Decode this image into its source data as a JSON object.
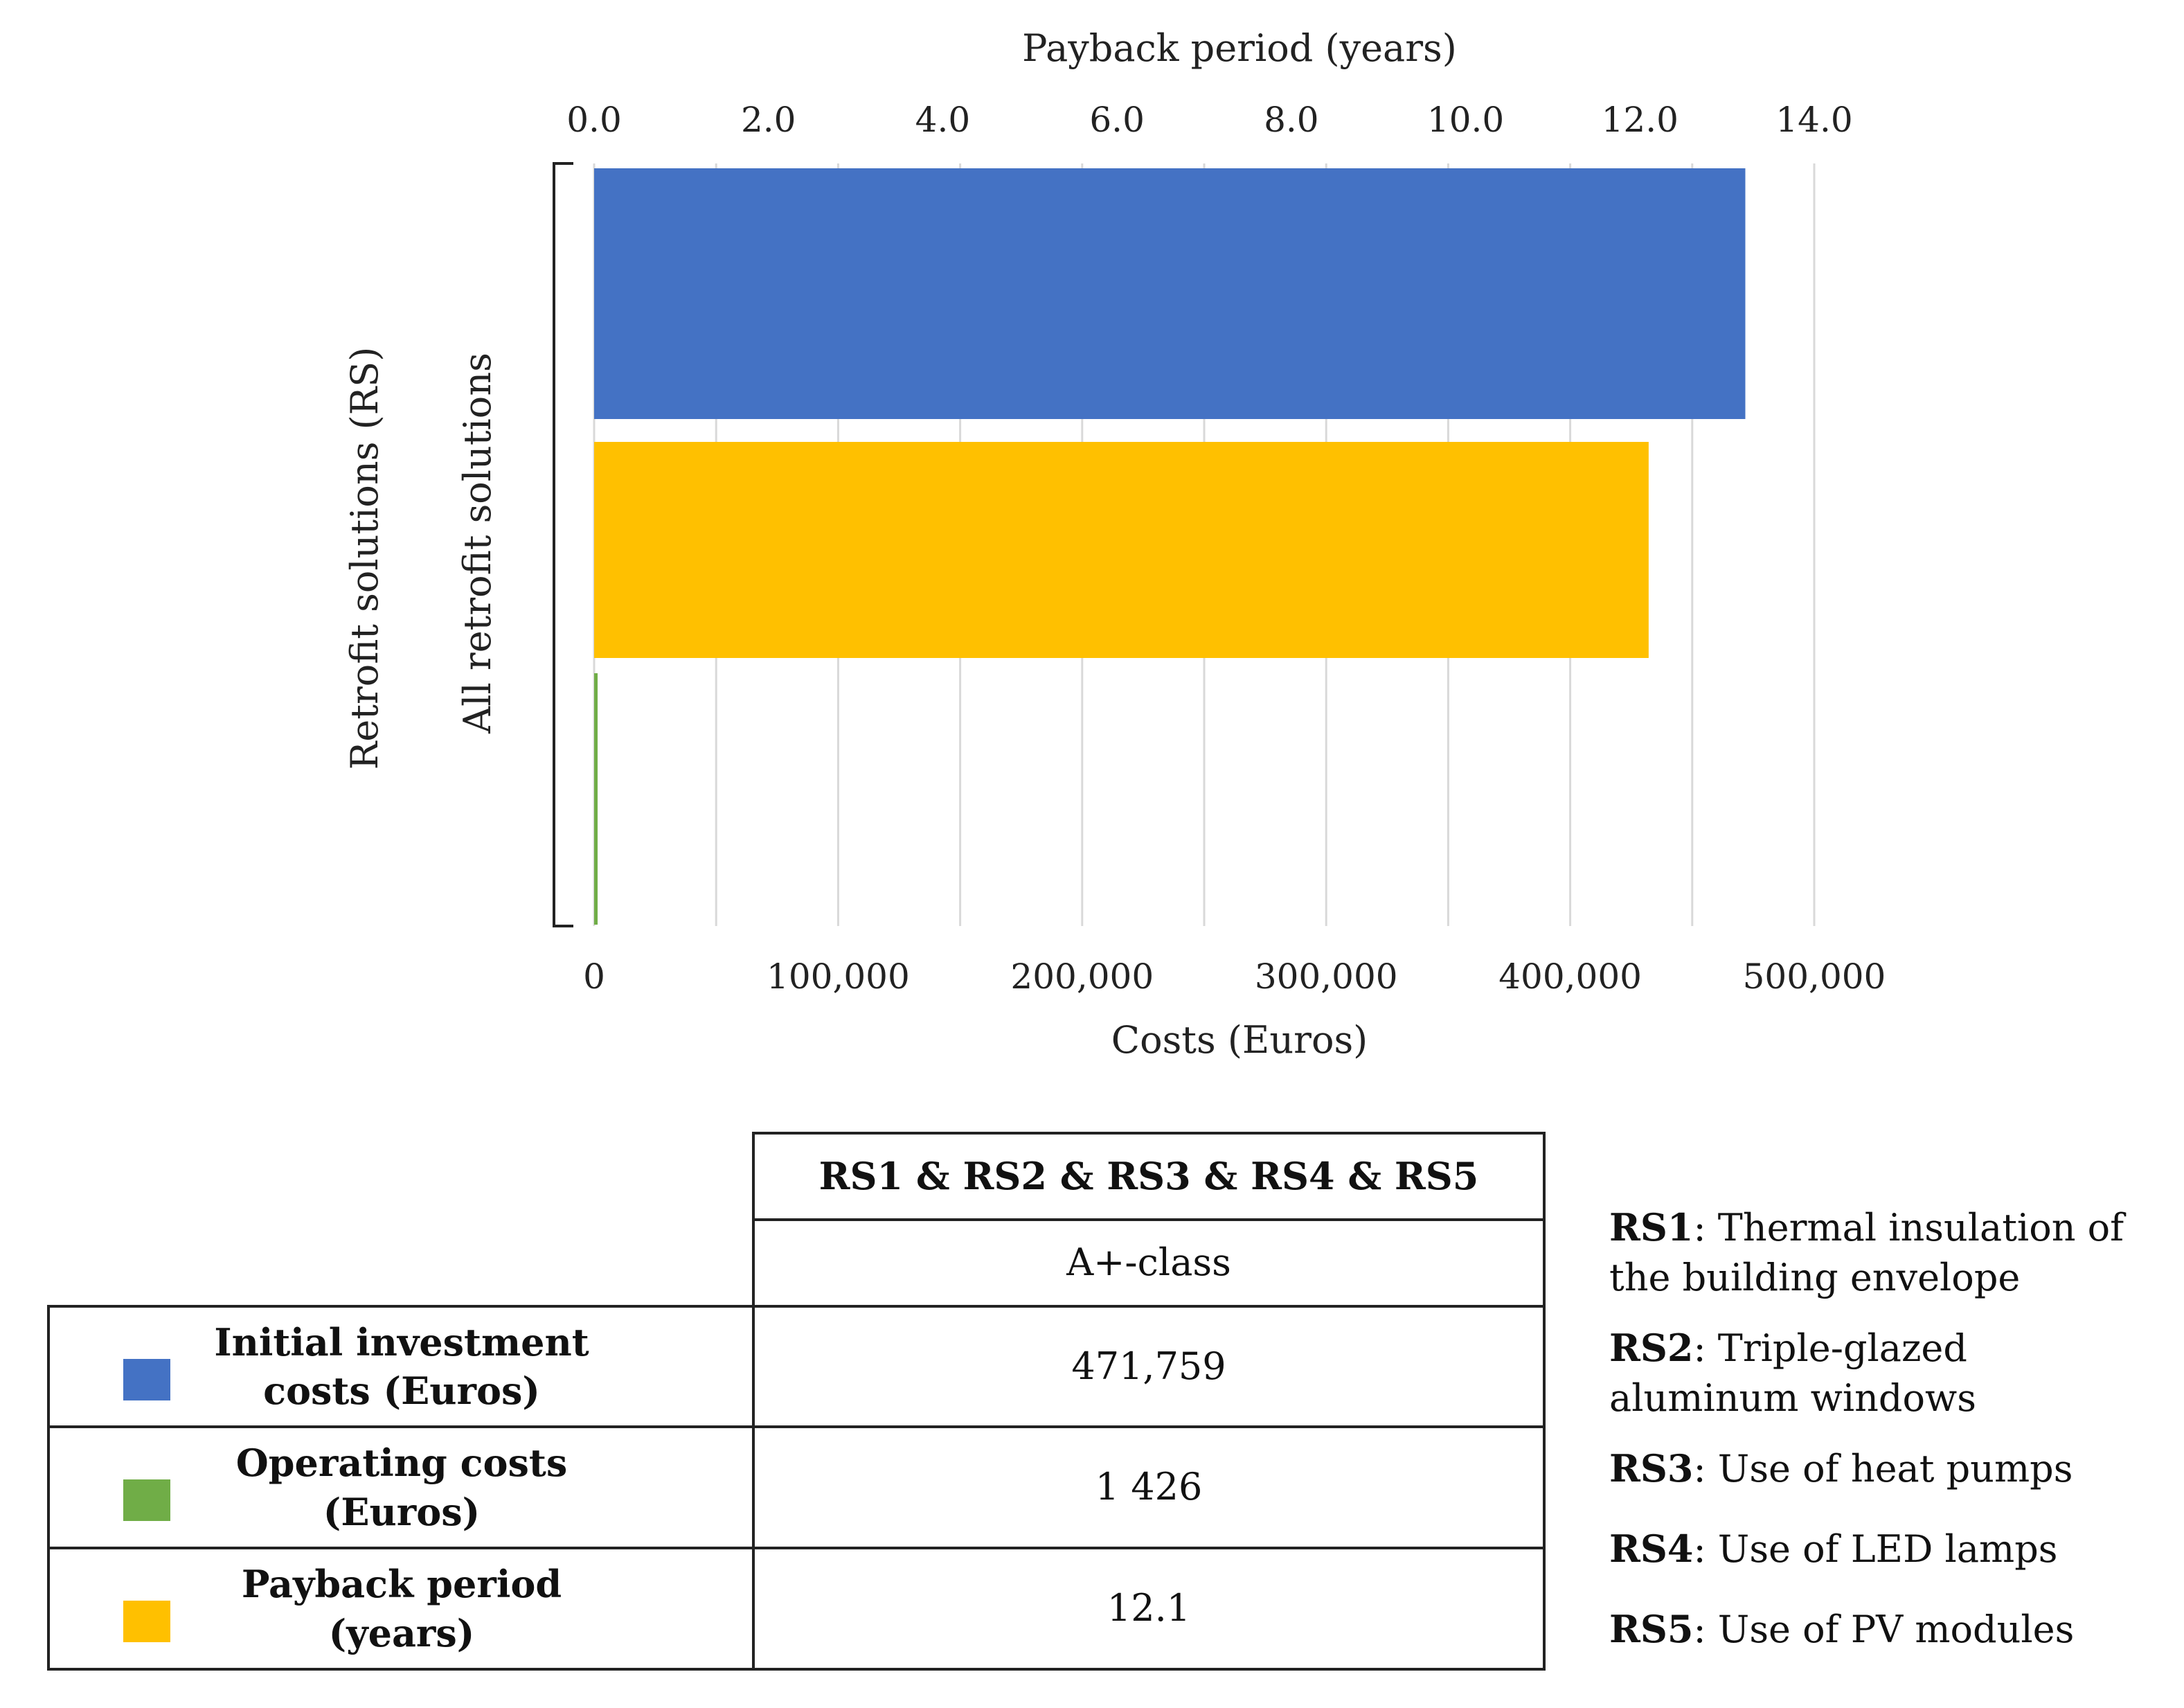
{
  "chart_data": {
    "type": "bar",
    "orientation": "horizontal",
    "category_axis_label": "Retrofit solutions (RS)",
    "categories": [
      "All retrofit solutions"
    ],
    "x_bottom": {
      "label": "Costs (Euros)",
      "range": [
        0,
        500000
      ],
      "ticks": [
        0,
        100000,
        200000,
        300000,
        400000,
        500000
      ],
      "tick_labels": [
        "0",
        "100,000",
        "200,000",
        "300,000",
        "400,000",
        "500,000"
      ]
    },
    "x_top": {
      "label": "Payback period (years)",
      "range": [
        0,
        14
      ],
      "ticks": [
        0,
        2,
        4,
        6,
        8,
        10,
        12,
        14
      ],
      "tick_labels": [
        "0.0",
        "2.0",
        "4.0",
        "6.0",
        "8.0",
        "10.0",
        "12.0",
        "14.0"
      ]
    },
    "series": [
      {
        "name": "Initial investment costs (Euros)",
        "axis": "bottom",
        "values": [
          471759
        ],
        "color": "#4472C4"
      },
      {
        "name": "Payback period (years)",
        "axis": "top",
        "values": [
          12.1
        ],
        "color": "#FFC000"
      },
      {
        "name": "Operating costs (Euros)",
        "axis": "bottom",
        "values": [
          1426
        ],
        "color": "#70AD47"
      }
    ],
    "grid": true
  },
  "table": {
    "column_header": "RS1 & RS2 & RS3 & RS4 & RS5",
    "column_subheader": "A+-class",
    "rows": [
      {
        "label_line1": "Initial investment",
        "label_line2": "costs (Euros)",
        "value": "471,759",
        "color": "#4472C4"
      },
      {
        "label_line1": "Operating costs",
        "label_line2": "(Euros)",
        "value": "1 426",
        "color": "#70AD47"
      },
      {
        "label_line1": "Payback period",
        "label_line2": "(years)",
        "value": "12.1",
        "color": "#FFC000"
      }
    ]
  },
  "notes": [
    {
      "code": "RS1",
      "text": ": Thermal insulation of the building envelope"
    },
    {
      "code": "RS2",
      "text": ": Triple-glazed aluminum windows"
    },
    {
      "code": "RS3",
      "text": ": Use of heat pumps"
    },
    {
      "code": "RS4",
      "text": ": Use of LED lamps"
    },
    {
      "code": "RS5",
      "text": ": Use of PV modules"
    }
  ]
}
